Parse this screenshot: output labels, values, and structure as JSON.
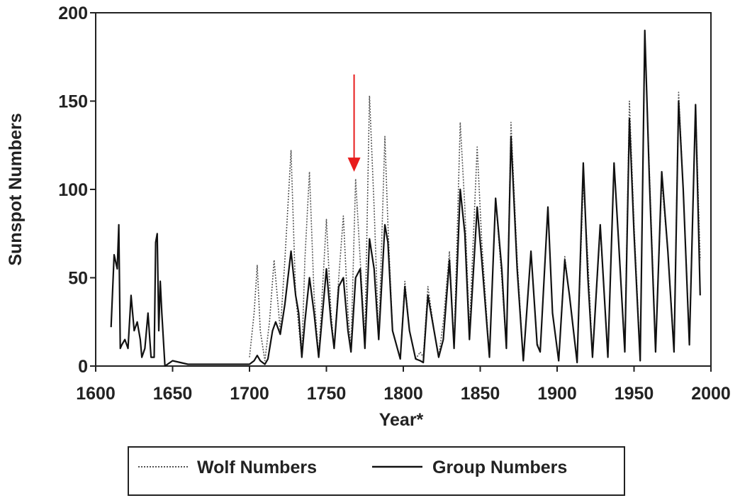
{
  "chart_data": {
    "type": "line",
    "title": "",
    "xlabel": "Year*",
    "ylabel": "Sunspot Numbers",
    "xlim": [
      1600,
      2000
    ],
    "ylim": [
      0,
      200
    ],
    "xticks": [
      1600,
      1650,
      1700,
      1750,
      1800,
      1850,
      1900,
      1950,
      2000
    ],
    "yticks": [
      0,
      50,
      100,
      150,
      200
    ],
    "grid": false,
    "legend_position": "bottom",
    "annotation": {
      "type": "arrow",
      "color": "#e81c1c",
      "points_to": {
        "x": 1768,
        "y": 110
      }
    },
    "series": [
      {
        "name": "Wolf Numbers",
        "style": "dotted",
        "color": "#555555",
        "x": [
          1700,
          1703,
          1705,
          1707,
          1710,
          1713,
          1716,
          1718,
          1720,
          1723,
          1727,
          1730,
          1734,
          1736,
          1739,
          1742,
          1745,
          1750,
          1753,
          1755,
          1758,
          1761,
          1764,
          1766,
          1769,
          1772,
          1775,
          1778,
          1781,
          1784,
          1788,
          1790,
          1793,
          1798,
          1801,
          1804,
          1808,
          1811,
          1813,
          1816,
          1820,
          1823,
          1826,
          1830,
          1833,
          1837,
          1840,
          1843,
          1848,
          1851,
          1856,
          1860,
          1864,
          1867,
          1870,
          1874,
          1878,
          1883,
          1887,
          1889,
          1894,
          1897,
          1901,
          1905,
          1908,
          1913,
          1917,
          1920,
          1923,
          1928,
          1933,
          1937,
          1940,
          1944,
          1947,
          1950,
          1954,
          1957,
          1960,
          1964,
          1968,
          1972,
          1976,
          1979,
          1982,
          1986,
          1990,
          1993
        ],
        "y": [
          5,
          30,
          57,
          20,
          3,
          25,
          60,
          40,
          20,
          60,
          122,
          40,
          5,
          60,
          110,
          40,
          5,
          83,
          30,
          10,
          50,
          85,
          30,
          10,
          106,
          60,
          15,
          153,
          90,
          15,
          130,
          80,
          20,
          4,
          48,
          20,
          4,
          8,
          5,
          45,
          20,
          5,
          25,
          65,
          10,
          138,
          90,
          20,
          124,
          70,
          5,
          95,
          50,
          10,
          138,
          60,
          3,
          65,
          13,
          8,
          90,
          30,
          3,
          62,
          40,
          2,
          105,
          60,
          5,
          78,
          6,
          115,
          70,
          10,
          150,
          80,
          5,
          185,
          110,
          10,
          105,
          65,
          10,
          155,
          100,
          15,
          148,
          60
        ]
      },
      {
        "name": "Group Numbers",
        "style": "solid",
        "color": "#111111",
        "x": [
          1610,
          1612,
          1614,
          1615,
          1616,
          1617,
          1619,
          1621,
          1623,
          1625,
          1627,
          1629,
          1630,
          1632,
          1634,
          1636,
          1638,
          1639,
          1640,
          1641,
          1642,
          1643,
          1645,
          1650,
          1655,
          1660,
          1670,
          1680,
          1690,
          1700,
          1703,
          1705,
          1707,
          1710,
          1712,
          1715,
          1717,
          1720,
          1723,
          1727,
          1730,
          1732,
          1734,
          1736,
          1739,
          1742,
          1745,
          1750,
          1753,
          1755,
          1758,
          1761,
          1764,
          1766,
          1769,
          1772,
          1775,
          1778,
          1781,
          1784,
          1788,
          1790,
          1793,
          1798,
          1801,
          1804,
          1808,
          1811,
          1813,
          1816,
          1820,
          1823,
          1826,
          1830,
          1833,
          1837,
          1840,
          1843,
          1848,
          1851,
          1856,
          1860,
          1864,
          1867,
          1870,
          1874,
          1878,
          1883,
          1887,
          1889,
          1894,
          1897,
          1901,
          1905,
          1908,
          1913,
          1917,
          1920,
          1923,
          1928,
          1933,
          1937,
          1940,
          1944,
          1947,
          1950,
          1954,
          1957,
          1960,
          1964,
          1968,
          1972,
          1976,
          1979,
          1982,
          1986,
          1990,
          1993
        ],
        "y": [
          22,
          63,
          55,
          80,
          10,
          12,
          15,
          10,
          40,
          20,
          25,
          15,
          5,
          10,
          30,
          5,
          5,
          70,
          75,
          20,
          48,
          30,
          0,
          3,
          2,
          1,
          1,
          1,
          1,
          1,
          3,
          6,
          3,
          1,
          4,
          20,
          25,
          18,
          35,
          65,
          40,
          30,
          5,
          25,
          50,
          30,
          5,
          55,
          25,
          10,
          45,
          50,
          20,
          8,
          50,
          55,
          10,
          72,
          55,
          15,
          80,
          70,
          20,
          4,
          45,
          20,
          4,
          3,
          2,
          40,
          20,
          5,
          15,
          60,
          10,
          100,
          75,
          15,
          90,
          60,
          5,
          95,
          55,
          10,
          130,
          55,
          3,
          65,
          12,
          8,
          90,
          30,
          3,
          60,
          40,
          2,
          115,
          50,
          5,
          80,
          5,
          115,
          70,
          8,
          140,
          75,
          3,
          190,
          105,
          8,
          110,
          65,
          8,
          150,
          100,
          12,
          148,
          40
        ]
      }
    ]
  }
}
